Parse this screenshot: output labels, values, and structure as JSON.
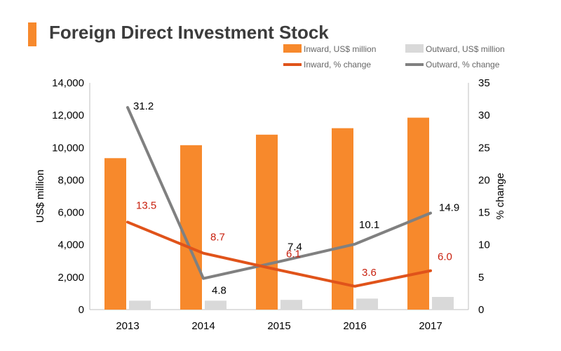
{
  "title": "Foreign Direct Investment Stock",
  "colors": {
    "inward_bar": "#f7892c",
    "outward_bar": "#d9d9d9",
    "inward_line": "#e0531a",
    "outward_line": "#808080",
    "accent": "#f7892c"
  },
  "chart_data": {
    "type": "bar",
    "categories": [
      "2013",
      "2014",
      "2015",
      "2016",
      "2017"
    ],
    "series": [
      {
        "name": "Inward, US$ million",
        "type": "bar",
        "axis": "left",
        "values": [
          9350,
          10150,
          10800,
          11200,
          11850
        ]
      },
      {
        "name": "Outward, US$ million",
        "type": "bar",
        "axis": "left",
        "values": [
          550,
          550,
          600,
          680,
          780
        ]
      },
      {
        "name": "Inward, % change",
        "type": "line",
        "axis": "right",
        "values": [
          13.5,
          8.7,
          6.1,
          3.6,
          6.0
        ],
        "labels": [
          "13.5",
          "8.7",
          "6.1",
          "3.6",
          "6.0"
        ]
      },
      {
        "name": "Outward, % change",
        "type": "line",
        "axis": "right",
        "values": [
          31.2,
          4.8,
          7.4,
          10.1,
          14.9
        ],
        "labels": [
          "31.2",
          "4.8",
          "7.4",
          "10.1",
          "14.9"
        ]
      }
    ],
    "ylabel": "US$ million",
    "y2label": "% change",
    "ylim": [
      0,
      14000
    ],
    "y2lim": [
      0,
      35
    ],
    "yticks": [
      "0",
      "2,000",
      "4,000",
      "6,000",
      "8,000",
      "10,000",
      "12,000",
      "14,000"
    ],
    "y2ticks": [
      "0",
      "5",
      "10",
      "15",
      "20",
      "25",
      "30",
      "35"
    ],
    "grid": false,
    "legend": "top-right"
  }
}
